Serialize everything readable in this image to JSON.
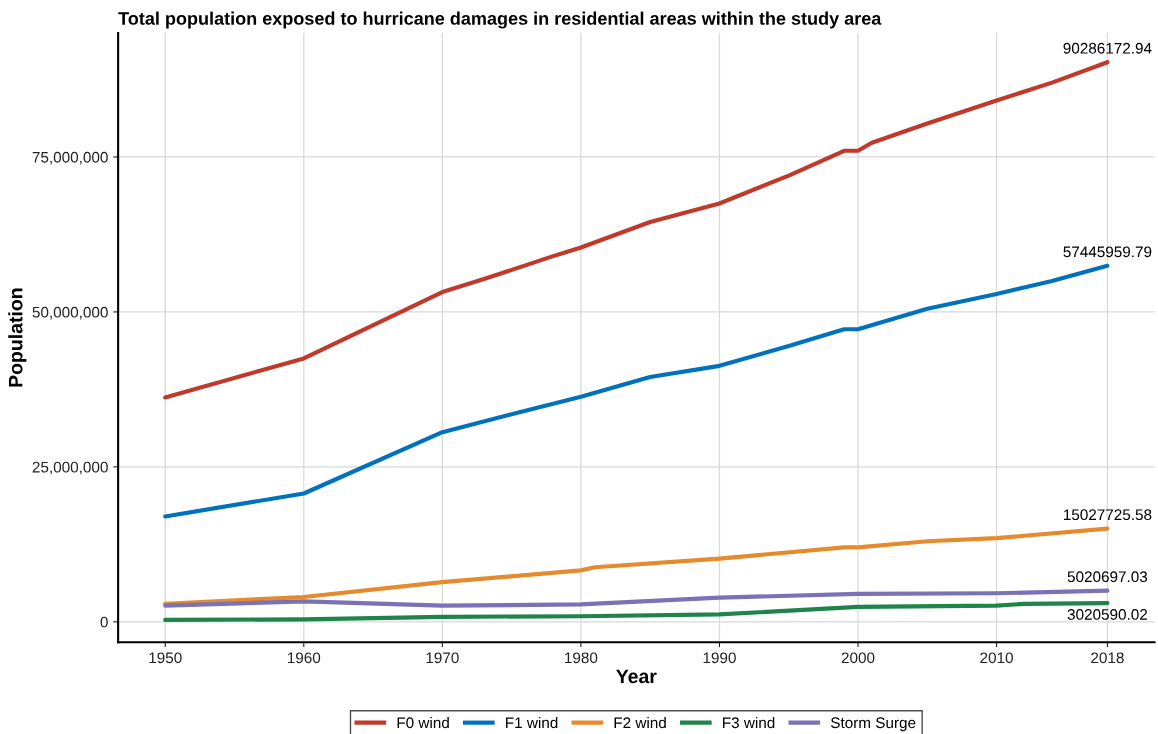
{
  "chart_data": {
    "type": "line",
    "title": "Total population exposed to hurricane damages in residential areas within the study area",
    "xlabel": "Year",
    "ylabel": "Population",
    "xlim": [
      1946.6,
      2021.4
    ],
    "xticks": [
      1950,
      1960,
      1970,
      1980,
      1990,
      2000,
      2010,
      2018
    ],
    "ylim": [
      -3300000,
      95000000
    ],
    "yticks": [
      {
        "value": 0,
        "label": "0"
      },
      {
        "value": 25000000,
        "label": "25,000,000"
      },
      {
        "value": 50000000,
        "label": "50,000,000"
      },
      {
        "value": 75000000,
        "label": "75,000,000"
      }
    ],
    "grid": true,
    "legend": "bottom",
    "marker": "none",
    "line_style": "solid",
    "series": [
      {
        "name": "F0 wind",
        "color": "#c0392b",
        "x": [
          1950,
          1960,
          1970,
          1973,
          1978,
          1980,
          1985,
          1990,
          1995,
          1999,
          2000,
          2001,
          2005,
          2010,
          2014,
          2018
        ],
        "values": [
          36200000,
          42500000,
          53200000,
          55300000,
          59000000,
          60400000,
          64500000,
          67500000,
          72000000,
          76000000,
          76000000,
          77300000,
          80400000,
          84100000,
          87000000,
          90286172.94
        ],
        "value_labels": [
          null,
          null,
          null,
          null,
          null,
          null,
          null,
          null,
          null,
          null,
          null,
          null,
          null,
          null,
          null,
          "90286172.94"
        ]
      },
      {
        "name": "F1 wind",
        "color": "#0072bd",
        "x": [
          1950,
          1960,
          1970,
          1975,
          1980,
          1985,
          1990,
          1995,
          1999,
          2000,
          2005,
          2010,
          2014,
          2018
        ],
        "values": [
          17000000,
          20700000,
          30600000,
          33500000,
          36300000,
          39500000,
          41300000,
          44500000,
          47200000,
          47200000,
          50500000,
          52900000,
          55000000,
          57445959.79
        ],
        "value_labels": [
          null,
          null,
          null,
          null,
          null,
          null,
          null,
          null,
          null,
          null,
          null,
          null,
          null,
          "57445959.79"
        ]
      },
      {
        "name": "F2 wind",
        "color": "#e68a2e",
        "x": [
          1950,
          1960,
          1970,
          1980,
          1981,
          1990,
          1999,
          2000,
          2005,
          2010,
          2018
        ],
        "values": [
          2900000,
          4000000,
          6400000,
          8300000,
          8800000,
          10200000,
          12000000,
          12000000,
          13000000,
          13500000,
          15027725.58
        ],
        "value_labels": [
          null,
          null,
          null,
          null,
          null,
          null,
          null,
          null,
          null,
          null,
          "15027725.58"
        ]
      },
      {
        "name": "F3 wind",
        "color": "#1e8449",
        "x": [
          1950,
          1960,
          1970,
          1980,
          1990,
          2000,
          2010,
          2012,
          2018
        ],
        "values": [
          300000,
          400000,
          800000,
          900000,
          1200000,
          2400000,
          2600000,
          2900000,
          3020590.02
        ],
        "value_labels": [
          null,
          null,
          null,
          null,
          null,
          null,
          null,
          null,
          "3020590.02"
        ]
      },
      {
        "name": "Storm Surge",
        "color": "#7b72b5",
        "x": [
          1950,
          1960,
          1970,
          1980,
          1990,
          2000,
          2010,
          2018
        ],
        "values": [
          2600000,
          3300000,
          2600000,
          2800000,
          3900000,
          4500000,
          4600000,
          5020697.03
        ],
        "value_labels": [
          null,
          null,
          null,
          null,
          null,
          null,
          null,
          "5020697.03"
        ]
      }
    ]
  }
}
